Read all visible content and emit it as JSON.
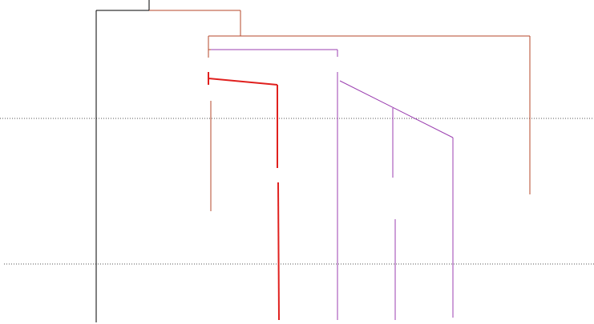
{
  "diagram": {
    "type": "dendrogram",
    "colors": {
      "black": "#000000",
      "brown": "#b5472a",
      "red": "#e0201e",
      "purple": "#9b3fb0",
      "guide": "#555555"
    },
    "guide_lines": [
      {
        "name": "upper-dotted-guide",
        "style": "dotted"
      },
      {
        "name": "lower-dotted-guide",
        "style": "dotted"
      }
    ]
  }
}
